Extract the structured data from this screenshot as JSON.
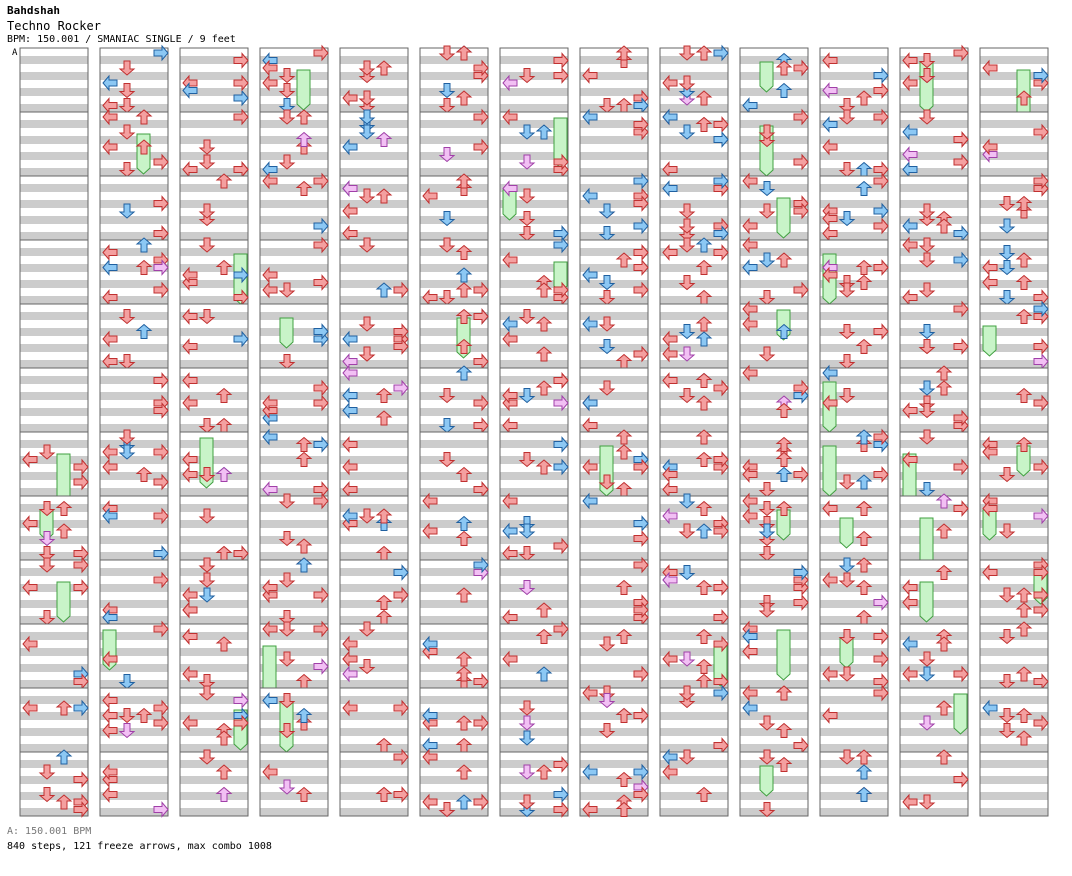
{
  "header": {
    "artist": "Bahdshah",
    "title": "Techno Rocker",
    "meta": "BPM: 150.001 / SMANIAC SINGLE / 9 feet",
    "bpm_marker": "A"
  },
  "footer": {
    "bpm_line": "A: 150.001 BPM",
    "stats": "840 steps, 121 freeze arrows, max combo 1008"
  },
  "colors": {
    "red": "#f4a0a0",
    "red_stroke": "#c03030",
    "blue": "#8cc8f4",
    "blue_stroke": "#2060a0",
    "pink": "#f2c0f4",
    "pink_stroke": "#a040a8",
    "freeze": "#c8f4c8",
    "freeze_stroke": "#40a040",
    "stripe": "#cccccc"
  },
  "chart_data": {
    "type": "step-chart",
    "columns": 13,
    "measures_per_column": 12,
    "lanes": [
      "left",
      "down",
      "up",
      "right"
    ],
    "steps_total": 840,
    "freeze_arrows": 121,
    "max_combo": 1008
  }
}
